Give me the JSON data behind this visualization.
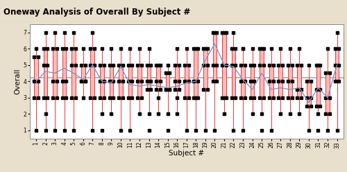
{
  "title": "Oneway Analysis of Overall By Subject #",
  "xlabel": "Subject #",
  "ylabel": "Overall",
  "ylim": [
    0.5,
    7.5
  ],
  "yticks": [
    1,
    2,
    3,
    4,
    5,
    6,
    7
  ],
  "grand_mean": 4.2,
  "subjects": [
    1,
    2,
    3,
    4,
    5,
    6,
    7,
    8,
    9,
    10,
    11,
    12,
    13,
    14,
    15,
    16,
    17,
    18,
    19,
    20,
    21,
    22,
    23,
    24,
    25,
    26,
    27,
    28,
    29,
    30,
    31,
    32,
    33
  ],
  "box_data": [
    {
      "q1": 3.0,
      "med": 4.0,
      "q3": 5.5,
      "whislo": 1.0,
      "whishi": 6.0,
      "mean": 4.0,
      "fliers": []
    },
    {
      "q1": 3.0,
      "med": 5.0,
      "q3": 6.0,
      "whislo": 1.0,
      "whishi": 7.0,
      "mean": 4.6,
      "fliers": [
        2.0
      ]
    },
    {
      "q1": 3.0,
      "med": 4.0,
      "q3": 6.0,
      "whislo": 1.0,
      "whishi": 7.0,
      "mean": 4.5,
      "fliers": []
    },
    {
      "q1": 3.0,
      "med": 4.0,
      "q3": 6.0,
      "whislo": 1.0,
      "whishi": 7.0,
      "mean": 4.8,
      "fliers": []
    },
    {
      "q1": 3.0,
      "med": 5.0,
      "q3": 6.0,
      "whislo": 1.0,
      "whishi": 7.0,
      "mean": 4.5,
      "fliers": []
    },
    {
      "q1": 4.0,
      "med": 4.0,
      "q3": 5.0,
      "whislo": 3.0,
      "whishi": 6.0,
      "mean": 4.1,
      "fliers": []
    },
    {
      "q1": 3.0,
      "med": 5.0,
      "q3": 6.0,
      "whislo": 1.0,
      "whishi": 7.0,
      "mean": 5.0,
      "fliers": []
    },
    {
      "q1": 3.0,
      "med": 4.0,
      "q3": 5.0,
      "whislo": 2.0,
      "whishi": 6.0,
      "mean": 4.0,
      "fliers": [
        1.0
      ]
    },
    {
      "q1": 3.0,
      "med": 4.0,
      "q3": 5.0,
      "whislo": 2.0,
      "whishi": 6.0,
      "mean": 3.9,
      "fliers": []
    },
    {
      "q1": 3.0,
      "med": 4.0,
      "q3": 5.0,
      "whislo": 1.0,
      "whishi": 6.0,
      "mean": 4.9,
      "fliers": []
    },
    {
      "q1": 3.0,
      "med": 4.0,
      "q3": 5.0,
      "whislo": 1.0,
      "whishi": 6.0,
      "mean": 3.8,
      "fliers": []
    },
    {
      "q1": 3.0,
      "med": 4.0,
      "q3": 5.0,
      "whislo": 2.0,
      "whishi": 6.0,
      "mean": 3.7,
      "fliers": []
    },
    {
      "q1": 3.5,
      "med": 4.0,
      "q3": 5.0,
      "whislo": 2.0,
      "whishi": 6.0,
      "mean": 3.8,
      "fliers": [
        1.0
      ]
    },
    {
      "q1": 3.5,
      "med": 4.0,
      "q3": 5.0,
      "whislo": 2.0,
      "whishi": 5.0,
      "mean": 3.7,
      "fliers": [
        3.0
      ]
    },
    {
      "q1": 3.5,
      "med": 3.5,
      "q3": 4.5,
      "whislo": 2.0,
      "whishi": 5.0,
      "mean": 3.6,
      "fliers": [
        1.0
      ]
    },
    {
      "q1": 3.5,
      "med": 4.0,
      "q3": 5.0,
      "whislo": 2.0,
      "whishi": 6.0,
      "mean": 3.7,
      "fliers": [
        3.0
      ]
    },
    {
      "q1": 3.0,
      "med": 4.0,
      "q3": 5.0,
      "whislo": 1.0,
      "whishi": 6.0,
      "mean": 3.9,
      "fliers": []
    },
    {
      "q1": 3.0,
      "med": 4.0,
      "q3": 6.0,
      "whislo": 1.0,
      "whishi": 6.0,
      "mean": 4.0,
      "fliers": [
        3.0
      ]
    },
    {
      "q1": 3.5,
      "med": 5.0,
      "q3": 6.0,
      "whislo": 1.0,
      "whishi": 6.0,
      "mean": 5.3,
      "fliers": []
    },
    {
      "q1": 4.0,
      "med": 5.0,
      "q3": 7.0,
      "whislo": 1.0,
      "whishi": 7.0,
      "mean": 6.3,
      "fliers": []
    },
    {
      "q1": 3.0,
      "med": 5.0,
      "q3": 7.0,
      "whislo": 2.0,
      "whishi": 7.0,
      "mean": 5.0,
      "fliers": [
        3.0
      ]
    },
    {
      "q1": 3.0,
      "med": 5.0,
      "q3": 6.0,
      "whislo": 1.0,
      "whishi": 7.0,
      "mean": 4.9,
      "fliers": []
    },
    {
      "q1": 3.0,
      "med": 4.0,
      "q3": 5.0,
      "whislo": 1.0,
      "whishi": 6.0,
      "mean": 4.1,
      "fliers": [
        6.0
      ]
    },
    {
      "q1": 3.0,
      "med": 4.0,
      "q3": 5.0,
      "whislo": 2.0,
      "whishi": 6.0,
      "mean": 3.5,
      "fliers": []
    },
    {
      "q1": 3.0,
      "med": 5.0,
      "q3": 6.0,
      "whislo": 2.0,
      "whishi": 6.0,
      "mean": 4.5,
      "fliers": [
        1.0
      ]
    },
    {
      "q1": 3.0,
      "med": 4.0,
      "q3": 5.0,
      "whislo": 1.0,
      "whishi": 6.0,
      "mean": 3.5,
      "fliers": []
    },
    {
      "q1": 3.0,
      "med": 4.0,
      "q3": 5.0,
      "whislo": 2.0,
      "whishi": 6.0,
      "mean": 3.6,
      "fliers": []
    },
    {
      "q1": 3.0,
      "med": 4.0,
      "q3": 5.0,
      "whislo": 2.0,
      "whishi": 6.0,
      "mean": 3.5,
      "fliers": []
    },
    {
      "q1": 3.0,
      "med": 3.5,
      "q3": 5.0,
      "whislo": 2.0,
      "whishi": 6.0,
      "mean": 3.6,
      "fliers": []
    },
    {
      "q1": 2.5,
      "med": 3.0,
      "q3": 4.0,
      "whislo": 1.0,
      "whishi": 5.0,
      "mean": 2.7,
      "fliers": []
    },
    {
      "q1": 2.5,
      "med": 3.5,
      "q3": 5.0,
      "whislo": 2.0,
      "whishi": 5.0,
      "mean": 3.6,
      "fliers": [
        1.0
      ]
    },
    {
      "q1": 2.0,
      "med": 3.0,
      "q3": 4.5,
      "whislo": 1.0,
      "whishi": 6.0,
      "mean": 3.0,
      "fliers": []
    },
    {
      "q1": 4.0,
      "med": 5.0,
      "q3": 6.0,
      "whislo": 1.0,
      "whishi": 7.0,
      "mean": 5.0,
      "fliers": []
    }
  ],
  "box_color": "#FFBBBB",
  "box_edge_color": "#EE3333",
  "whisker_color": "#EE3333",
  "median_color": "#EE3333",
  "mean_line_color": "#7799CC",
  "grand_mean_color": "#AAAAAA",
  "flier_color": "black",
  "header_color": "#E8E0CC",
  "plot_bg_color": "white",
  "border_color": "#AAAAAA",
  "title_fontsize": 8.5,
  "label_fontsize": 7.5,
  "tick_fontsize": 5.5
}
